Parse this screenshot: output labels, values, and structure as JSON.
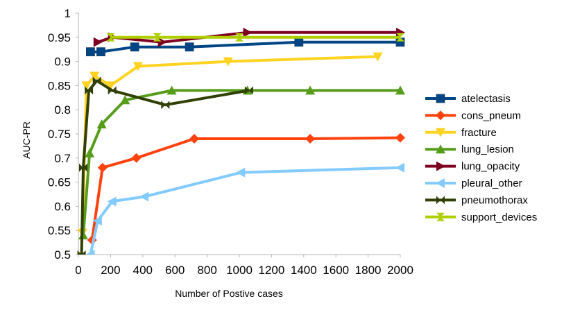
{
  "chart_data": {
    "type": "line",
    "title": "",
    "xlabel": "Number of Postive cases",
    "ylabel": "AUC-PR",
    "xlim": [
      0,
      2000
    ],
    "ylim": [
      0.5,
      1
    ],
    "xticks": [
      0,
      200,
      400,
      600,
      800,
      1000,
      1200,
      1400,
      1600,
      1800,
      2000
    ],
    "yticks": [
      0.5,
      0.55,
      0.6,
      0.65,
      0.7,
      0.75,
      0.8,
      0.85,
      0.9,
      0.95,
      1
    ],
    "x_tick_labels": [
      "0",
      "200",
      "400",
      "600",
      "800",
      "1000",
      "1200",
      "1400",
      "1600",
      "1800",
      "2000"
    ],
    "y_tick_labels": [
      "0.5",
      "0.55",
      "0.6",
      "0.65",
      "0.7",
      "0.75",
      "0.8",
      "0.85",
      "0.9",
      "0.95",
      "1"
    ],
    "grid": false,
    "legend_position": "right",
    "series": [
      {
        "name": "atelectasis",
        "color": "#004586",
        "marker": "square",
        "points": [
          [
            75,
            0.92
          ],
          [
            140,
            0.92
          ],
          [
            350,
            0.93
          ],
          [
            690,
            0.93
          ],
          [
            1370,
            0.94
          ],
          [
            2000,
            0.94
          ]
        ]
      },
      {
        "name": "cons_pneum",
        "color": "#ff420e",
        "marker": "diamond",
        "points": [
          [
            85,
            0.53
          ],
          [
            150,
            0.68
          ],
          [
            360,
            0.7
          ],
          [
            720,
            0.74
          ],
          [
            1440,
            0.74
          ],
          [
            2000,
            0.742
          ]
        ]
      },
      {
        "name": "fracture",
        "color": "#ffd320",
        "marker": "triangle-down",
        "points": [
          [
            25,
            0.545
          ],
          [
            50,
            0.85
          ],
          [
            100,
            0.87
          ],
          [
            200,
            0.85
          ],
          [
            370,
            0.89
          ],
          [
            930,
            0.9
          ],
          [
            1860,
            0.91
          ]
        ]
      },
      {
        "name": "lung_lesion",
        "color": "#579d1c",
        "marker": "triangle-up",
        "points": [
          [
            30,
            0.54
          ],
          [
            70,
            0.71
          ],
          [
            145,
            0.77
          ],
          [
            290,
            0.82
          ],
          [
            580,
            0.84
          ],
          [
            1050,
            0.84
          ],
          [
            1440,
            0.84
          ],
          [
            2000,
            0.84
          ]
        ]
      },
      {
        "name": "lung_opacity",
        "color": "#7e0021",
        "marker": "triangle-right",
        "points": [
          [
            120,
            0.94
          ],
          [
            210,
            0.95
          ],
          [
            520,
            0.94
          ],
          [
            1050,
            0.96
          ],
          [
            2000,
            0.96
          ]
        ]
      },
      {
        "name": "pleural_other",
        "color": "#83caff",
        "marker": "triangle-left",
        "points": [
          [
            75,
            0.5
          ],
          [
            120,
            0.57
          ],
          [
            210,
            0.61
          ],
          [
            410,
            0.62
          ],
          [
            1010,
            0.67
          ],
          [
            2000,
            0.68
          ]
        ]
      },
      {
        "name": "pneumothorax",
        "color": "#314004",
        "marker": "bowtie",
        "points": [
          [
            20,
            0.5
          ],
          [
            30,
            0.68
          ],
          [
            65,
            0.84
          ],
          [
            115,
            0.86
          ],
          [
            210,
            0.84
          ],
          [
            540,
            0.81
          ],
          [
            1060,
            0.84
          ]
        ]
      },
      {
        "name": "support_devices",
        "color": "#aecf00",
        "marker": "hourglass",
        "points": [
          [
            200,
            0.95
          ],
          [
            490,
            0.95
          ],
          [
            1000,
            0.95
          ],
          [
            2000,
            0.95
          ]
        ]
      }
    ]
  }
}
